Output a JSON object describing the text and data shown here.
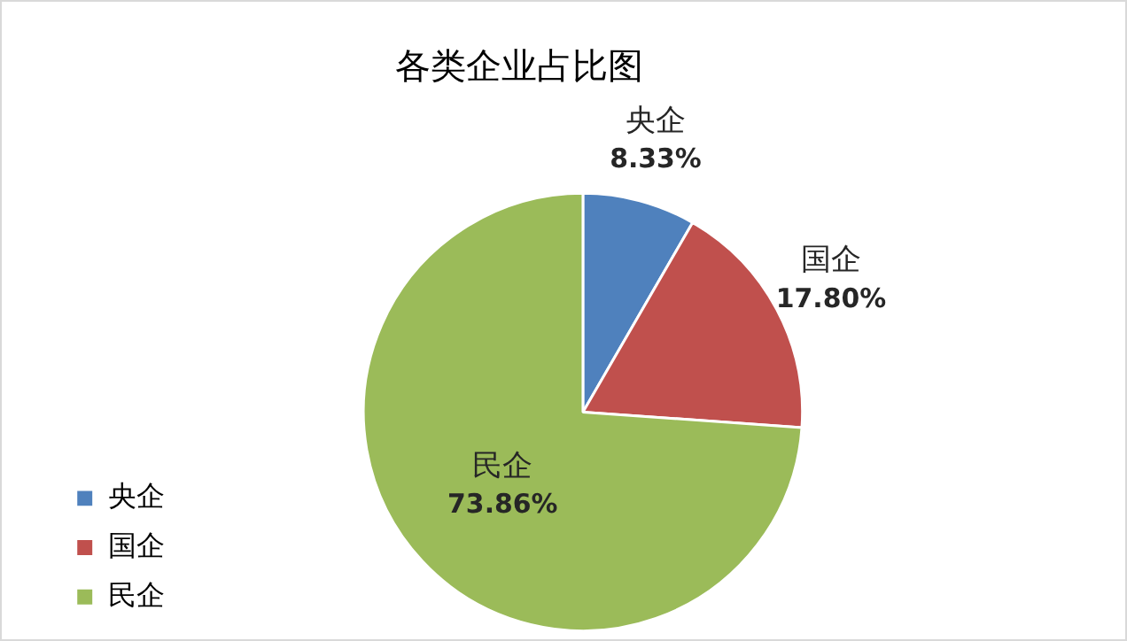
{
  "chart_data": {
    "type": "pie",
    "title": "各类企业占比图",
    "categories": [
      "央企",
      "国企",
      "民企"
    ],
    "values": [
      8.33,
      17.8,
      73.86
    ],
    "colors": [
      "#4f81bd",
      "#c0504d",
      "#9bbb59"
    ],
    "value_labels": [
      "8.33%",
      "17.80%",
      "73.86%"
    ],
    "legend": "left"
  }
}
